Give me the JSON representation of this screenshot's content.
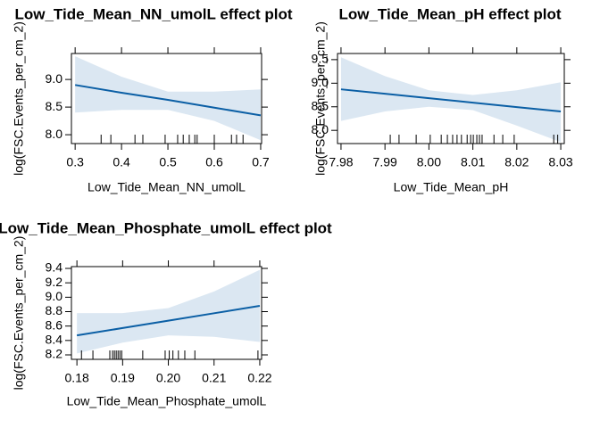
{
  "chart_data": [
    {
      "type": "line",
      "title": "Low_Tide_Mean_NN_umolL effect plot",
      "xlabel": "Low_Tide_Mean_NN_umolL",
      "ylabel": "log(FSC.Events_per_cm_2)",
      "x": [
        0.3,
        0.4,
        0.5,
        0.6,
        0.7
      ],
      "values": [
        8.9,
        8.76,
        8.63,
        8.49,
        8.35
      ],
      "lower": [
        8.4,
        8.45,
        8.45,
        8.25,
        7.9
      ],
      "upper": [
        9.42,
        9.05,
        8.78,
        8.78,
        8.82
      ],
      "color": "#0b5fa5",
      "band_color": "#dbe7f2",
      "rug": [
        0.356,
        0.377,
        0.429,
        0.446,
        0.494,
        0.521,
        0.533,
        0.546,
        0.558,
        0.563,
        0.6,
        0.637,
        0.648,
        0.662
      ],
      "xlim": [
        0.292,
        0.702
      ],
      "ylim": [
        7.84,
        9.47
      ],
      "xticks": [
        0.3,
        0.4,
        0.5,
        0.6,
        0.7
      ],
      "yticks": [
        {
          "value": 8,
          "label": "8.0"
        },
        8.5,
        {
          "value": 9,
          "label": "9.0"
        }
      ]
    },
    {
      "type": "line",
      "title": "Low_Tide_Mean_pH effect plot",
      "xlabel": "Low_Tide_Mean_pH",
      "ylabel": "log(FSC.Events_per_cm_2)",
      "x": [
        7.98,
        7.99,
        8.0,
        8.01,
        8.02,
        8.03
      ],
      "values": [
        8.87,
        8.776,
        8.682,
        8.588,
        8.494,
        8.4
      ],
      "lower": [
        8.2,
        8.4,
        8.5,
        8.43,
        8.1,
        7.75
      ],
      "upper": [
        9.55,
        9.15,
        8.85,
        8.75,
        8.85,
        9.02
      ],
      "color": "#0b5fa5",
      "band_color": "#dbe7f2",
      "rug": [
        7.9912,
        7.9932,
        7.9971,
        8.0003,
        8.0028,
        8.0042,
        8.0054,
        8.0064,
        8.0074,
        8.0087,
        8.0095,
        8.0101,
        8.0109,
        8.0115,
        8.0121,
        8.0148,
        8.0168,
        8.0194,
        8.0284,
        8.0293
      ],
      "xlim": [
        7.9792,
        8.0308
      ],
      "ylim": [
        7.72,
        9.63
      ],
      "xticks": [
        7.98,
        7.99,
        {
          "value": 8,
          "label": "8.00"
        },
        8.01,
        8.02,
        8.03
      ],
      "yticks": [
        {
          "value": 8,
          "label": "8.0"
        },
        8.5,
        {
          "value": 9,
          "label": "9.0"
        },
        9.5
      ]
    },
    {
      "type": "line",
      "title": "Low_Tide_Mean_Phosphate_umolL effect plot",
      "xlabel": "Low_Tide_Mean_Phosphate_umolL",
      "ylabel": "log(FSC.Events_per_cm_2)",
      "x": [
        0.18,
        0.19,
        0.2,
        0.21,
        0.22
      ],
      "values": [
        8.47,
        8.5725,
        8.675,
        8.7775,
        8.88
      ],
      "lower": [
        8.22,
        8.37,
        8.47,
        8.45,
        8.38
      ],
      "upper": [
        8.78,
        8.78,
        8.85,
        9.08,
        9.38
      ],
      "color": "#0b5fa5",
      "band_color": "#dbe7f2",
      "rug": [
        0.181,
        0.1835,
        0.1872,
        0.1878,
        0.1882,
        0.1886,
        0.189,
        0.1894,
        0.1898,
        0.1944,
        0.1993,
        0.2002,
        0.201,
        0.2022,
        0.2036,
        0.2058,
        0.2196
      ],
      "xlim": [
        0.1788,
        0.2204
      ],
      "ylim": [
        8.138,
        9.425
      ],
      "xticks": [
        0.18,
        0.19,
        {
          "value": 0.2,
          "label": "0.20"
        },
        0.21,
        0.22
      ],
      "yticks": [
        8.2,
        8.4,
        8.6,
        8.8,
        {
          "value": 9,
          "label": "9.0"
        },
        9.2,
        9.4
      ]
    }
  ]
}
